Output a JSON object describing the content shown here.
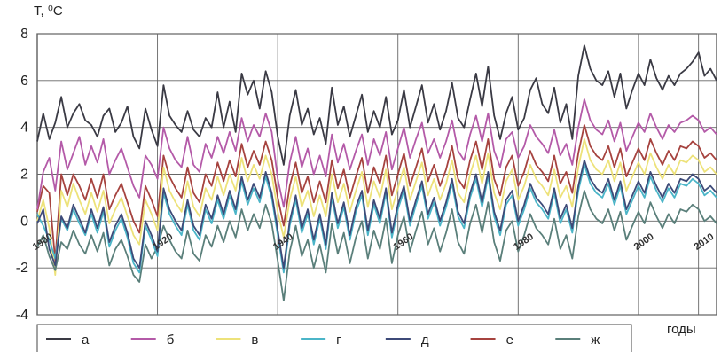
{
  "chart_data": {
    "type": "line",
    "ylabel": "T, ⁰C",
    "xlabel": "годы",
    "ylim": [
      -4,
      8
    ],
    "yticks": [
      "8",
      "6",
      "4",
      "2",
      "0",
      "-2",
      "-4"
    ],
    "xlim": [
      1900,
      2013
    ],
    "xticks": [
      {
        "value": 1900,
        "label": "1900"
      },
      {
        "value": 1920,
        "label": "1920"
      },
      {
        "value": 1940,
        "label": "1940"
      },
      {
        "value": 1960,
        "label": "1960"
      },
      {
        "value": 1980,
        "label": "1980"
      },
      {
        "value": 2000,
        "label": "2000"
      },
      {
        "value": 2010,
        "label": "2010"
      }
    ],
    "grid": true,
    "legend_position": "bottom",
    "years": [
      1900,
      1901,
      1902,
      1903,
      1904,
      1905,
      1906,
      1907,
      1908,
      1909,
      1910,
      1911,
      1912,
      1913,
      1914,
      1915,
      1916,
      1917,
      1918,
      1919,
      1920,
      1921,
      1922,
      1923,
      1924,
      1925,
      1926,
      1927,
      1928,
      1929,
      1930,
      1931,
      1932,
      1933,
      1934,
      1935,
      1936,
      1937,
      1938,
      1939,
      1940,
      1941,
      1942,
      1943,
      1944,
      1945,
      1946,
      1947,
      1948,
      1949,
      1950,
      1951,
      1952,
      1953,
      1954,
      1955,
      1956,
      1957,
      1958,
      1959,
      1960,
      1961,
      1962,
      1963,
      1964,
      1965,
      1966,
      1967,
      1968,
      1969,
      1970,
      1971,
      1972,
      1973,
      1974,
      1975,
      1976,
      1977,
      1978,
      1979,
      1980,
      1981,
      1982,
      1983,
      1984,
      1985,
      1986,
      1987,
      1988,
      1989,
      1990,
      1991,
      1992,
      1993,
      1994,
      1995,
      1996,
      1997,
      1998,
      1999,
      2000,
      2001,
      2002,
      2003,
      2004,
      2005,
      2006,
      2007,
      2008,
      2009,
      2010,
      2011,
      2012,
      2013
    ],
    "series": [
      {
        "name": "а",
        "color": "#3a3a44",
        "values": [
          3.4,
          4.6,
          3.5,
          4.2,
          5.3,
          4.0,
          4.6,
          5.0,
          4.3,
          4.1,
          3.6,
          4.5,
          4.8,
          3.8,
          4.2,
          4.9,
          3.6,
          3.1,
          4.8,
          3.9,
          3.2,
          5.8,
          4.5,
          4.1,
          3.8,
          4.7,
          3.9,
          3.6,
          4.4,
          4.0,
          5.5,
          4.0,
          5.1,
          3.8,
          6.3,
          5.4,
          6.0,
          4.8,
          6.4,
          5.5,
          3.6,
          2.4,
          4.5,
          5.6,
          4.1,
          4.8,
          3.7,
          4.4,
          3.3,
          5.7,
          4.1,
          4.9,
          3.6,
          4.5,
          5.4,
          3.8,
          4.7,
          4.0,
          5.3,
          3.7,
          4.3,
          5.6,
          4.0,
          4.9,
          5.8,
          4.2,
          5.0,
          3.9,
          4.7,
          5.9,
          4.4,
          4.0,
          5.2,
          6.3,
          4.9,
          6.6,
          4.5,
          3.5,
          4.6,
          5.3,
          3.9,
          4.4,
          5.6,
          6.1,
          5.0,
          4.6,
          5.7,
          4.2,
          5.0,
          3.5,
          6.2,
          7.5,
          6.5,
          6.0,
          5.8,
          6.4,
          5.3,
          6.3,
          4.8,
          5.6,
          6.3,
          5.8,
          6.9,
          6.1,
          5.6,
          6.2,
          5.8,
          6.3,
          6.5,
          6.8,
          7.2,
          6.2,
          6.5,
          6.0
        ]
      },
      {
        "name": "б",
        "color": "#b45aa8",
        "values": [
          0.5,
          2.1,
          2.7,
          1.3,
          3.4,
          2.2,
          2.9,
          3.6,
          2.4,
          3.2,
          2.5,
          3.5,
          2.0,
          2.6,
          3.1,
          2.3,
          1.5,
          1.0,
          2.8,
          2.4,
          1.8,
          4.0,
          3.1,
          2.6,
          2.3,
          3.6,
          2.4,
          2.1,
          3.3,
          2.7,
          3.6,
          2.9,
          3.8,
          3.0,
          4.4,
          3.4,
          4.1,
          3.6,
          4.6,
          3.8,
          1.8,
          0.6,
          2.5,
          3.6,
          2.3,
          3.1,
          2.0,
          2.8,
          1.9,
          3.7,
          2.5,
          3.3,
          2.2,
          3.0,
          3.7,
          2.4,
          3.5,
          2.8,
          3.8,
          2.2,
          3.1,
          4.0,
          2.7,
          3.5,
          4.2,
          2.9,
          3.5,
          2.7,
          3.4,
          4.3,
          3.0,
          2.6,
          3.7,
          4.5,
          3.4,
          4.6,
          3.0,
          2.3,
          3.5,
          3.8,
          2.7,
          3.2,
          4.1,
          3.6,
          3.3,
          2.9,
          3.9,
          2.8,
          3.3,
          2.4,
          4.0,
          5.2,
          4.3,
          3.9,
          3.7,
          4.3,
          3.4,
          4.2,
          3.0,
          3.6,
          4.2,
          3.8,
          4.6,
          4.0,
          3.5,
          4.1,
          3.8,
          4.2,
          4.3,
          4.5,
          4.3,
          3.8,
          4.0,
          3.7
        ]
      },
      {
        "name": "в",
        "color": "#ede27a",
        "values": [
          0.0,
          0.9,
          -0.3,
          -2.3,
          1.3,
          0.6,
          1.6,
          0.9,
          0.3,
          1.2,
          0.4,
          1.3,
          -0.1,
          0.5,
          1.0,
          0.2,
          -0.6,
          -1.0,
          0.9,
          0.3,
          -0.4,
          2.3,
          1.3,
          0.8,
          0.4,
          1.7,
          0.6,
          0.2,
          1.4,
          0.9,
          1.9,
          1.1,
          2.0,
          1.3,
          2.7,
          1.7,
          2.4,
          1.8,
          2.8,
          2.0,
          0.4,
          -0.7,
          0.9,
          1.9,
          0.6,
          1.3,
          0.2,
          1.1,
          0.2,
          2.0,
          0.8,
          1.6,
          0.4,
          1.3,
          2.1,
          0.6,
          1.7,
          1.0,
          2.2,
          0.5,
          1.4,
          2.3,
          0.9,
          1.7,
          2.5,
          1.1,
          1.8,
          0.9,
          1.6,
          2.6,
          1.2,
          0.8,
          2.0,
          2.8,
          1.6,
          2.9,
          1.2,
          0.5,
          1.7,
          2.2,
          0.9,
          1.5,
          2.4,
          1.8,
          1.5,
          1.1,
          2.2,
          1.0,
          1.5,
          0.6,
          2.3,
          3.5,
          2.6,
          2.2,
          2.0,
          2.6,
          1.7,
          2.5,
          1.3,
          1.9,
          2.5,
          2.0,
          2.9,
          2.3,
          1.8,
          2.4,
          2.0,
          2.6,
          2.5,
          2.8,
          2.6,
          2.1,
          2.3,
          2.0
        ]
      },
      {
        "name": "г",
        "color": "#4bb5c8",
        "values": [
          0.3,
          -0.2,
          -0.8,
          -1.6,
          0.1,
          -0.4,
          0.5,
          -0.1,
          -0.6,
          0.3,
          -0.5,
          0.4,
          -1.1,
          -0.4,
          0.1,
          -0.7,
          -1.8,
          -2.2,
          -0.2,
          -0.8,
          -1.5,
          1.2,
          0.3,
          -0.2,
          -0.6,
          0.7,
          -0.4,
          -0.8,
          0.5,
          -0.1,
          0.9,
          0.1,
          1.1,
          0.3,
          1.7,
          0.7,
          1.4,
          0.8,
          1.9,
          1.0,
          -0.6,
          -2.2,
          -0.2,
          0.9,
          -0.5,
          0.3,
          -1.0,
          0.1,
          -1.2,
          1.0,
          -0.3,
          0.6,
          -0.8,
          0.4,
          1.1,
          -0.6,
          0.7,
          -0.1,
          1.2,
          -0.7,
          0.5,
          1.3,
          -0.2,
          0.7,
          1.5,
          0.1,
          0.8,
          -0.2,
          0.6,
          1.6,
          0.2,
          -0.3,
          1.0,
          1.8,
          0.6,
          1.9,
          0.2,
          -0.6,
          0.7,
          1.1,
          -0.2,
          0.5,
          1.4,
          0.8,
          0.5,
          0.1,
          1.2,
          -0.1,
          0.5,
          -0.5,
          1.3,
          2.4,
          1.6,
          1.2,
          1.0,
          1.6,
          0.7,
          1.5,
          0.3,
          0.9,
          1.5,
          1.0,
          1.9,
          1.3,
          0.8,
          1.4,
          1.0,
          1.6,
          1.5,
          1.8,
          1.6,
          1.1,
          1.3,
          1.0
        ]
      },
      {
        "name": "д",
        "color": "#3d4a78",
        "values": [
          -0.1,
          0.5,
          -1.2,
          -1.9,
          0.2,
          -0.3,
          0.7,
          0.1,
          -0.5,
          0.5,
          -0.3,
          0.6,
          -0.9,
          -0.2,
          0.3,
          -0.5,
          -1.6,
          -2.0,
          0.0,
          -0.6,
          -1.3,
          1.4,
          0.5,
          0.0,
          -0.4,
          0.9,
          -0.2,
          -0.6,
          0.7,
          0.1,
          1.1,
          0.3,
          1.3,
          0.5,
          1.9,
          0.9,
          1.6,
          1.0,
          2.1,
          1.2,
          -0.4,
          -2.0,
          0.0,
          1.1,
          -0.3,
          0.5,
          -0.8,
          0.3,
          -1.0,
          1.2,
          -0.1,
          0.8,
          -0.6,
          0.6,
          1.3,
          -0.4,
          0.9,
          0.1,
          1.4,
          -0.5,
          0.7,
          1.5,
          0.0,
          0.9,
          1.7,
          0.3,
          1.0,
          0.0,
          0.8,
          1.8,
          0.4,
          -0.1,
          1.2,
          2.0,
          0.8,
          2.1,
          0.4,
          -0.4,
          0.9,
          1.3,
          0.0,
          0.7,
          1.6,
          1.0,
          0.7,
          0.3,
          1.4,
          0.1,
          0.7,
          -0.3,
          1.5,
          2.6,
          1.8,
          1.4,
          1.2,
          1.8,
          0.9,
          1.7,
          0.5,
          1.1,
          1.7,
          1.2,
          2.1,
          1.5,
          1.0,
          1.6,
          1.2,
          1.8,
          1.7,
          2.0,
          1.8,
          1.3,
          1.5,
          1.2
        ]
      },
      {
        "name": "е",
        "color": "#a6433f",
        "values": [
          0.4,
          1.5,
          1.2,
          -1.7,
          2.0,
          1.1,
          2.0,
          1.5,
          0.9,
          1.8,
          1.0,
          2.0,
          0.5,
          1.1,
          1.6,
          0.8,
          0.0,
          -0.5,
          1.5,
          0.9,
          0.2,
          2.8,
          1.9,
          1.4,
          1.0,
          2.3,
          1.2,
          0.8,
          2.0,
          1.5,
          2.5,
          1.7,
          2.6,
          1.9,
          3.3,
          2.3,
          3.0,
          2.4,
          3.4,
          2.6,
          1.0,
          -0.2,
          1.5,
          2.5,
          1.2,
          1.9,
          0.8,
          1.7,
          0.8,
          2.6,
          1.4,
          2.2,
          1.0,
          1.9,
          2.7,
          1.2,
          2.3,
          1.6,
          2.8,
          1.1,
          2.0,
          2.9,
          1.5,
          2.3,
          3.1,
          1.7,
          2.4,
          1.5,
          2.2,
          3.2,
          1.8,
          1.4,
          2.6,
          3.4,
          2.2,
          3.5,
          1.8,
          1.1,
          2.3,
          2.8,
          1.5,
          2.1,
          3.0,
          2.4,
          2.1,
          1.7,
          2.8,
          1.6,
          2.1,
          1.2,
          2.9,
          4.1,
          3.2,
          2.8,
          2.6,
          3.2,
          2.3,
          3.1,
          1.9,
          2.5,
          3.1,
          2.6,
          3.5,
          2.9,
          2.4,
          3.0,
          2.6,
          3.2,
          3.1,
          3.4,
          3.2,
          2.7,
          2.9,
          2.6
        ]
      },
      {
        "name": "ж",
        "color": "#5a7f7a",
        "values": [
          -1.1,
          -0.6,
          -1.5,
          -2.1,
          -0.9,
          -1.2,
          -0.4,
          -1.0,
          -1.4,
          -0.6,
          -1.3,
          -0.5,
          -1.9,
          -1.2,
          -0.8,
          -1.5,
          -2.3,
          -2.6,
          -1.0,
          -1.6,
          -1.1,
          -0.2,
          -0.8,
          -1.3,
          -1.6,
          -0.4,
          -1.4,
          -1.7,
          -0.6,
          -1.1,
          -0.2,
          -0.9,
          0.0,
          -0.7,
          0.5,
          -0.4,
          0.3,
          -0.3,
          0.7,
          -0.1,
          -1.7,
          -3.4,
          -1.3,
          -0.2,
          -1.5,
          -0.8,
          -2.0,
          -1.0,
          -2.2,
          -0.1,
          -1.4,
          -0.5,
          -1.8,
          -0.7,
          0.0,
          -1.6,
          -0.4,
          -1.2,
          0.1,
          -1.8,
          -0.6,
          0.2,
          -1.3,
          -0.4,
          0.4,
          -1.0,
          -0.3,
          -1.3,
          -0.5,
          0.5,
          -0.9,
          -1.4,
          -0.1,
          0.7,
          -0.5,
          0.8,
          -0.9,
          -1.7,
          -0.4,
          0.0,
          -1.3,
          -0.6,
          0.3,
          -0.3,
          -0.6,
          -1.0,
          0.1,
          -1.2,
          -0.6,
          -1.6,
          0.2,
          1.3,
          0.5,
          0.1,
          -0.1,
          0.5,
          -0.4,
          0.4,
          -0.8,
          -0.2,
          0.4,
          -0.1,
          0.8,
          0.2,
          -0.3,
          0.3,
          -0.1,
          0.5,
          0.4,
          0.7,
          0.5,
          0.0,
          0.2,
          -0.1
        ]
      }
    ]
  }
}
